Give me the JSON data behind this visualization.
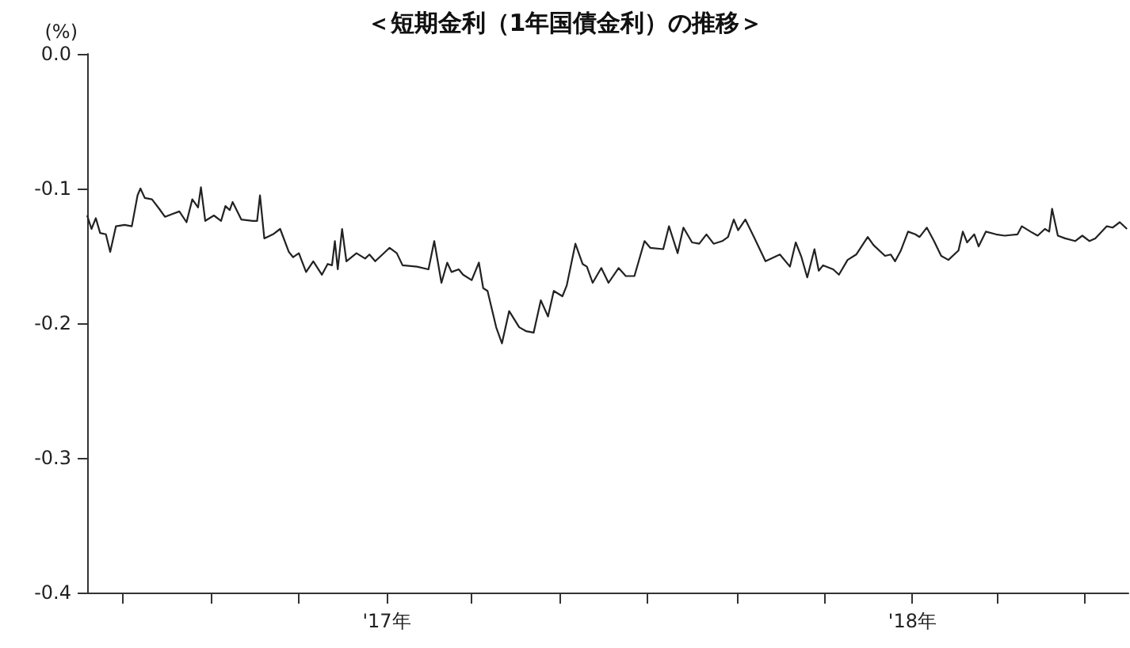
{
  "chart_data": {
    "type": "line",
    "title": "＜短期金利（1年国債金利）の推移＞",
    "ylabel": "(%)",
    "xlim": [
      "2016-06-07",
      "2018-05-31"
    ],
    "xticks": [
      {
        "value": "2016-07-01",
        "label": null
      },
      {
        "value": "2016-09-01",
        "label": null
      },
      {
        "value": "2016-11-01",
        "label": null
      },
      {
        "value": "2017-01-01",
        "label": "'17年"
      },
      {
        "value": "2017-03-01",
        "label": null
      },
      {
        "value": "2017-05-01",
        "label": null
      },
      {
        "value": "2017-07-01",
        "label": null
      },
      {
        "value": "2017-09-01",
        "label": null
      },
      {
        "value": "2017-11-01",
        "label": null
      },
      {
        "value": "2018-01-01",
        "label": "'18年"
      },
      {
        "value": "2018-03-01",
        "label": null
      },
      {
        "value": "2018-05-01",
        "label": null
      }
    ],
    "ylim": [
      -0.4,
      0
    ],
    "yticks": [
      {
        "value": 0,
        "label": "0.0"
      },
      -0.1,
      -0.2,
      -0.3,
      -0.4
    ],
    "grid": false,
    "marker": "none",
    "line_style": "solid",
    "series": [
      {
        "color": "#222222",
        "x": [
          "2016-06-07",
          "2016-06-10",
          "2016-06-13",
          "2016-06-16",
          "2016-06-20",
          "2016-06-23",
          "2016-06-27",
          "2016-07-03",
          "2016-07-08",
          "2016-07-12",
          "2016-07-14",
          "2016-07-17",
          "2016-07-22",
          "2016-07-27",
          "2016-07-31",
          "2016-08-05",
          "2016-08-10",
          "2016-08-15",
          "2016-08-19",
          "2016-08-23",
          "2016-08-25",
          "2016-08-28",
          "2016-09-03",
          "2016-09-08",
          "2016-09-11",
          "2016-09-14",
          "2016-09-16",
          "2016-09-22",
          "2016-09-30",
          "2016-10-03",
          "2016-10-05",
          "2016-10-08",
          "2016-10-14",
          "2016-10-19",
          "2016-10-25",
          "2016-10-28",
          "2016-11-01",
          "2016-11-06",
          "2016-11-11",
          "2016-11-17",
          "2016-11-21",
          "2016-11-24",
          "2016-11-26",
          "2016-11-28",
          "2016-12-01",
          "2016-12-04",
          "2016-12-11",
          "2016-12-17",
          "2016-12-20",
          "2016-12-24",
          "2016-12-28",
          "2017-01-03",
          "2017-01-08",
          "2017-01-12",
          "2017-01-22",
          "2017-01-30",
          "2017-02-03",
          "2017-02-08",
          "2017-02-12",
          "2017-02-15",
          "2017-02-20",
          "2017-02-23",
          "2017-03-01",
          "2017-03-06",
          "2017-03-09",
          "2017-03-12",
          "2017-03-18",
          "2017-03-22",
          "2017-03-27",
          "2017-04-03",
          "2017-04-08",
          "2017-04-13",
          "2017-04-18",
          "2017-04-23",
          "2017-04-27",
          "2017-05-03",
          "2017-05-06",
          "2017-05-12",
          "2017-05-17",
          "2017-05-20",
          "2017-05-24",
          "2017-05-30",
          "2017-06-04",
          "2017-06-11",
          "2017-06-16",
          "2017-06-22",
          "2017-06-29",
          "2017-07-03",
          "2017-07-12",
          "2017-07-16",
          "2017-07-22",
          "2017-07-26",
          "2017-08-01",
          "2017-08-06",
          "2017-08-11",
          "2017-08-16",
          "2017-08-22",
          "2017-08-26",
          "2017-08-30",
          "2017-09-02",
          "2017-09-07",
          "2017-09-13",
          "2017-09-21",
          "2017-10-01",
          "2017-10-08",
          "2017-10-12",
          "2017-10-16",
          "2017-10-20",
          "2017-10-25",
          "2017-10-28",
          "2017-10-31",
          "2017-11-07",
          "2017-11-11",
          "2017-11-17",
          "2017-11-23",
          "2017-12-01",
          "2017-12-05",
          "2017-12-13",
          "2017-12-17",
          "2017-12-20",
          "2017-12-24",
          "2017-12-29",
          "2018-01-03",
          "2018-01-06",
          "2018-01-11",
          "2018-01-16",
          "2018-01-21",
          "2018-01-26",
          "2018-02-02",
          "2018-02-05",
          "2018-02-08",
          "2018-02-13",
          "2018-02-16",
          "2018-02-21",
          "2018-02-28",
          "2018-03-06",
          "2018-03-15",
          "2018-03-18",
          "2018-03-24",
          "2018-03-29",
          "2018-04-03",
          "2018-04-06",
          "2018-04-08",
          "2018-04-12",
          "2018-04-17",
          "2018-04-24",
          "2018-04-29",
          "2018-05-04",
          "2018-05-08",
          "2018-05-16",
          "2018-05-20",
          "2018-05-25",
          "2018-05-30"
        ],
        "values": [
          -0.12,
          -0.13,
          -0.122,
          -0.133,
          -0.134,
          -0.147,
          -0.128,
          -0.127,
          -0.128,
          -0.105,
          -0.1,
          -0.107,
          -0.108,
          -0.115,
          -0.121,
          -0.119,
          -0.117,
          -0.125,
          -0.108,
          -0.114,
          -0.099,
          -0.124,
          -0.12,
          -0.124,
          -0.113,
          -0.116,
          -0.11,
          -0.123,
          -0.124,
          -0.124,
          -0.105,
          -0.137,
          -0.134,
          -0.13,
          -0.147,
          -0.151,
          -0.148,
          -0.162,
          -0.154,
          -0.164,
          -0.156,
          -0.157,
          -0.139,
          -0.16,
          -0.13,
          -0.154,
          -0.148,
          -0.152,
          -0.149,
          -0.154,
          -0.15,
          -0.144,
          -0.148,
          -0.157,
          -0.158,
          -0.16,
          -0.139,
          -0.17,
          -0.155,
          -0.162,
          -0.16,
          -0.164,
          -0.168,
          -0.155,
          -0.174,
          -0.176,
          -0.203,
          -0.215,
          -0.191,
          -0.203,
          -0.206,
          -0.207,
          -0.183,
          -0.195,
          -0.176,
          -0.18,
          -0.172,
          -0.141,
          -0.156,
          -0.158,
          -0.17,
          -0.159,
          -0.17,
          -0.159,
          -0.165,
          -0.165,
          -0.139,
          -0.144,
          -0.145,
          -0.128,
          -0.148,
          -0.129,
          -0.14,
          -0.141,
          -0.134,
          -0.141,
          -0.139,
          -0.136,
          -0.123,
          -0.131,
          -0.123,
          -0.136,
          -0.154,
          -0.149,
          -0.158,
          -0.14,
          -0.151,
          -0.166,
          -0.145,
          -0.161,
          -0.157,
          -0.16,
          -0.164,
          -0.153,
          -0.149,
          -0.136,
          -0.142,
          -0.15,
          -0.149,
          -0.154,
          -0.146,
          -0.132,
          -0.134,
          -0.136,
          -0.129,
          -0.139,
          -0.15,
          -0.153,
          -0.146,
          -0.132,
          -0.14,
          -0.134,
          -0.143,
          -0.132,
          -0.134,
          -0.135,
          -0.134,
          -0.128,
          -0.132,
          -0.135,
          -0.13,
          -0.132,
          -0.115,
          -0.135,
          -0.137,
          -0.139,
          -0.135,
          -0.139,
          -0.137,
          -0.128,
          -0.129,
          -0.125,
          -0.13
        ]
      }
    ]
  }
}
